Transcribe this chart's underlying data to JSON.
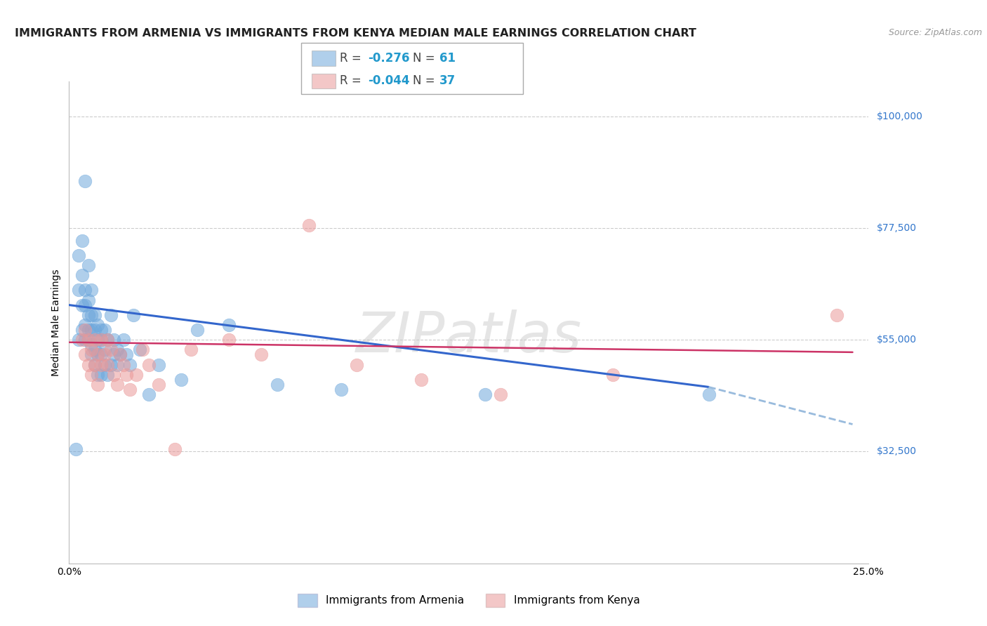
{
  "title": "IMMIGRANTS FROM ARMENIA VS IMMIGRANTS FROM KENYA MEDIAN MALE EARNINGS CORRELATION CHART",
  "source": "Source: ZipAtlas.com",
  "ylabel": "Median Male Earnings",
  "xlim": [
    0.0,
    0.25
  ],
  "ylim": [
    10000,
    107000
  ],
  "yticks": [
    32500,
    55000,
    77500,
    100000
  ],
  "ytick_labels": [
    "$32,500",
    "$55,000",
    "$77,500",
    "$100,000"
  ],
  "xticks": [
    0.0,
    0.05,
    0.1,
    0.15,
    0.2,
    0.25
  ],
  "xtick_labels": [
    "0.0%",
    "",
    "",
    "",
    "",
    "25.0%"
  ],
  "grid_color": "#cccccc",
  "watermark": "ZIPatlas",
  "armenia_color": "#6fa8dc",
  "kenya_color": "#ea9999",
  "armenia_R": -0.276,
  "armenia_N": 61,
  "kenya_R": -0.044,
  "kenya_N": 37,
  "armenia_scatter_x": [
    0.002,
    0.003,
    0.003,
    0.003,
    0.004,
    0.004,
    0.004,
    0.004,
    0.005,
    0.005,
    0.005,
    0.005,
    0.005,
    0.006,
    0.006,
    0.006,
    0.006,
    0.006,
    0.007,
    0.007,
    0.007,
    0.007,
    0.007,
    0.008,
    0.008,
    0.008,
    0.008,
    0.009,
    0.009,
    0.009,
    0.009,
    0.01,
    0.01,
    0.01,
    0.01,
    0.011,
    0.011,
    0.011,
    0.012,
    0.012,
    0.013,
    0.013,
    0.014,
    0.014,
    0.015,
    0.015,
    0.016,
    0.017,
    0.018,
    0.019,
    0.02,
    0.022,
    0.025,
    0.028,
    0.035,
    0.04,
    0.05,
    0.065,
    0.085,
    0.13,
    0.2
  ],
  "armenia_scatter_y": [
    33000,
    55000,
    65000,
    72000,
    57000,
    62000,
    68000,
    75000,
    55000,
    58000,
    62000,
    65000,
    87000,
    55000,
    57000,
    60000,
    63000,
    70000,
    52000,
    54000,
    57000,
    60000,
    65000,
    50000,
    53000,
    57000,
    60000,
    48000,
    52000,
    55000,
    58000,
    48000,
    52000,
    55000,
    57000,
    50000,
    53000,
    57000,
    48000,
    55000,
    50000,
    60000,
    52000,
    55000,
    50000,
    53000,
    52000,
    55000,
    52000,
    50000,
    60000,
    53000,
    44000,
    50000,
    47000,
    57000,
    58000,
    46000,
    45000,
    44000,
    44000
  ],
  "kenya_scatter_x": [
    0.004,
    0.005,
    0.005,
    0.006,
    0.006,
    0.007,
    0.007,
    0.008,
    0.008,
    0.009,
    0.009,
    0.01,
    0.01,
    0.011,
    0.012,
    0.012,
    0.013,
    0.014,
    0.015,
    0.016,
    0.017,
    0.018,
    0.019,
    0.021,
    0.023,
    0.025,
    0.028,
    0.033,
    0.038,
    0.05,
    0.06,
    0.075,
    0.09,
    0.11,
    0.135,
    0.17,
    0.24
  ],
  "kenya_scatter_y": [
    55000,
    52000,
    57000,
    50000,
    55000,
    48000,
    53000,
    50000,
    55000,
    46000,
    52000,
    50000,
    55000,
    52000,
    50000,
    55000,
    53000,
    48000,
    46000,
    52000,
    50000,
    48000,
    45000,
    48000,
    53000,
    50000,
    46000,
    33000,
    53000,
    55000,
    52000,
    78000,
    50000,
    47000,
    44000,
    48000,
    60000
  ],
  "armenia_line_x0": 0.0,
  "armenia_line_x1": 0.2,
  "armenia_line_x2": 0.245,
  "armenia_line_y0": 62000,
  "armenia_line_y1": 45500,
  "armenia_line_y2": 38000,
  "kenya_line_x0": 0.0,
  "kenya_line_x1": 0.245,
  "kenya_line_y0": 54500,
  "kenya_line_y1": 52500,
  "title_fontsize": 11.5,
  "axis_label_fontsize": 10,
  "tick_fontsize": 10,
  "legend_fontsize": 12
}
